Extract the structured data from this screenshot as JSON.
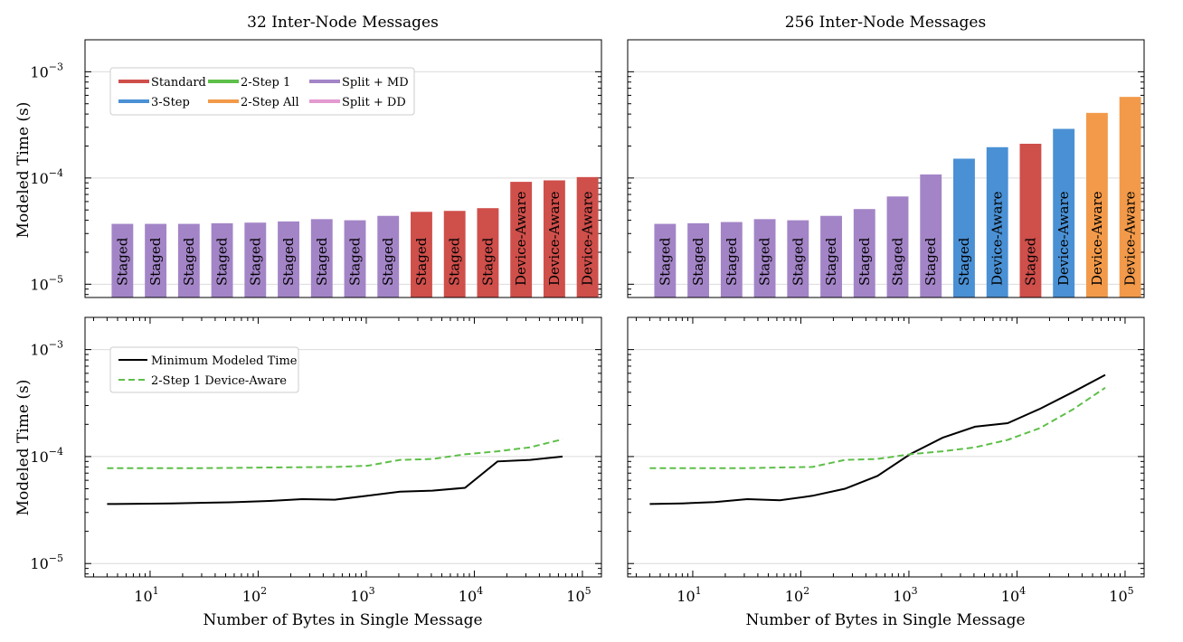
{
  "chart_data": [
    {
      "type": "bar",
      "title": "32 Inter-Node Messages",
      "xlabel": "",
      "ylabel": "Modeled Time (s)",
      "yscale": "log",
      "ylim": [
        7.5e-06,
        0.002
      ],
      "grid": true,
      "legend": {
        "placement": "top-left",
        "entries": [
          {
            "name": "Standard",
            "color": "#cf4f4b"
          },
          {
            "name": "2-Step 1",
            "color": "#5ebf49"
          },
          {
            "name": "Split + MD",
            "color": "#a385c7"
          },
          {
            "name": "3-Step",
            "color": "#4a90d4"
          },
          {
            "name": "2-Step All",
            "color": "#f29a4a"
          },
          {
            "name": "Split + DD",
            "color": "#e39ad0"
          }
        ]
      },
      "bars": [
        {
          "value": 3.7e-05,
          "label": "Staged",
          "method": "Split + MD"
        },
        {
          "value": 3.7e-05,
          "label": "Staged",
          "method": "Split + MD"
        },
        {
          "value": 3.7e-05,
          "label": "Staged",
          "method": "Split + MD"
        },
        {
          "value": 3.75e-05,
          "label": "Staged",
          "method": "Split + MD"
        },
        {
          "value": 3.8e-05,
          "label": "Staged",
          "method": "Split + MD"
        },
        {
          "value": 3.9e-05,
          "label": "Staged",
          "method": "Split + MD"
        },
        {
          "value": 4.1e-05,
          "label": "Staged",
          "method": "Split + MD"
        },
        {
          "value": 4e-05,
          "label": "Staged",
          "method": "Split + MD"
        },
        {
          "value": 4.4e-05,
          "label": "Staged",
          "method": "Split + MD"
        },
        {
          "value": 4.8e-05,
          "label": "Staged",
          "method": "Standard"
        },
        {
          "value": 4.9e-05,
          "label": "Staged",
          "method": "Standard"
        },
        {
          "value": 5.2e-05,
          "label": "Staged",
          "method": "Standard"
        },
        {
          "value": 9.2e-05,
          "label": "Device-Aware",
          "method": "Standard"
        },
        {
          "value": 9.5e-05,
          "label": "Device-Aware",
          "method": "Standard"
        },
        {
          "value": 0.000102,
          "label": "Device-Aware",
          "method": "Standard"
        }
      ]
    },
    {
      "type": "bar",
      "title": "256 Inter-Node Messages",
      "xlabel": "",
      "ylabel": "",
      "yscale": "log",
      "ylim": [
        7.5e-06,
        0.002
      ],
      "grid": true,
      "bars": [
        {
          "value": 3.7e-05,
          "label": "Staged",
          "method": "Split + MD"
        },
        {
          "value": 3.75e-05,
          "label": "Staged",
          "method": "Split + MD"
        },
        {
          "value": 3.85e-05,
          "label": "Staged",
          "method": "Split + MD"
        },
        {
          "value": 4.1e-05,
          "label": "Staged",
          "method": "Split + MD"
        },
        {
          "value": 4e-05,
          "label": "Staged",
          "method": "Split + MD"
        },
        {
          "value": 4.4e-05,
          "label": "Staged",
          "method": "Split + MD"
        },
        {
          "value": 5.1e-05,
          "label": "Staged",
          "method": "Split + MD"
        },
        {
          "value": 6.7e-05,
          "label": "Staged",
          "method": "Split + MD"
        },
        {
          "value": 0.000108,
          "label": "Staged",
          "method": "Split + MD"
        },
        {
          "value": 0.000152,
          "label": "Staged",
          "method": "3-Step"
        },
        {
          "value": 0.000195,
          "label": "Device-Aware",
          "method": "3-Step"
        },
        {
          "value": 0.00021,
          "label": "Staged",
          "method": "Standard"
        },
        {
          "value": 0.00029,
          "label": "Device-Aware",
          "method": "3-Step"
        },
        {
          "value": 0.00041,
          "label": "Device-Aware",
          "method": "2-Step All"
        },
        {
          "value": 0.00058,
          "label": "Device-Aware",
          "method": "2-Step All"
        }
      ]
    },
    {
      "type": "line",
      "title": "",
      "xlabel": "Number of Bytes in Single Message",
      "ylabel": "Modeled Time (s)",
      "xscale": "log",
      "yscale": "log",
      "xlim": [
        2.5,
        150000
      ],
      "ylim": [
        7.5e-06,
        0.002
      ],
      "grid": true,
      "legend": {
        "placement": "top-left"
      },
      "x": [
        4,
        8,
        16,
        32,
        64,
        128,
        256,
        512,
        1024,
        2048,
        4096,
        8192,
        16384,
        32768,
        65536
      ],
      "series": [
        {
          "name": "Minimum Modeled Time",
          "color": "#000000",
          "style": "solid",
          "values": [
            3.6e-05,
            3.62e-05,
            3.65e-05,
            3.7e-05,
            3.75e-05,
            3.85e-05,
            4e-05,
            3.95e-05,
            4.3e-05,
            4.7e-05,
            4.8e-05,
            5.1e-05,
            9e-05,
            9.3e-05,
            0.0001
          ]
        },
        {
          "name": "2-Step 1 Device-Aware",
          "color": "#5ebf49",
          "style": "dashed",
          "values": [
            7.8e-05,
            7.8e-05,
            7.8e-05,
            7.8e-05,
            7.85e-05,
            7.9e-05,
            7.95e-05,
            8e-05,
            8.2e-05,
            9.3e-05,
            9.5e-05,
            0.000105,
            0.000112,
            0.000122,
            0.000145
          ]
        }
      ]
    },
    {
      "type": "line",
      "title": "",
      "xlabel": "Number of Bytes in Single Message",
      "ylabel": "",
      "xscale": "log",
      "yscale": "log",
      "xlim": [
        2.5,
        150000
      ],
      "ylim": [
        7.5e-06,
        0.002
      ],
      "grid": true,
      "x": [
        4,
        8,
        16,
        32,
        64,
        128,
        256,
        512,
        1024,
        2048,
        4096,
        8192,
        16384,
        32768,
        65536
      ],
      "series": [
        {
          "name": "Minimum Modeled Time",
          "color": "#000000",
          "style": "solid",
          "values": [
            3.6e-05,
            3.65e-05,
            3.75e-05,
            4e-05,
            3.9e-05,
            4.3e-05,
            5e-05,
            6.6e-05,
            0.000105,
            0.00015,
            0.00019,
            0.000205,
            0.00028,
            0.0004,
            0.00058
          ]
        },
        {
          "name": "2-Step 1 Device-Aware",
          "color": "#5ebf49",
          "style": "dashed",
          "values": [
            7.8e-05,
            7.8e-05,
            7.8e-05,
            7.8e-05,
            7.9e-05,
            8e-05,
            9.3e-05,
            9.5e-05,
            0.000105,
            0.000112,
            0.000122,
            0.000143,
            0.000185,
            0.000275,
            0.00044
          ]
        }
      ]
    }
  ],
  "ticks": {
    "y": [
      {
        "base": "10",
        "exp": "−3",
        "value": 0.001
      },
      {
        "base": "10",
        "exp": "−4",
        "value": 0.0001
      },
      {
        "base": "10",
        "exp": "−5",
        "value": 1e-05
      }
    ],
    "x": [
      {
        "base": "10",
        "exp": "1",
        "value": 10
      },
      {
        "base": "10",
        "exp": "2",
        "value": 100
      },
      {
        "base": "10",
        "exp": "3",
        "value": 1000
      },
      {
        "base": "10",
        "exp": "4",
        "value": 10000
      },
      {
        "base": "10",
        "exp": "5",
        "value": 100000
      }
    ]
  }
}
